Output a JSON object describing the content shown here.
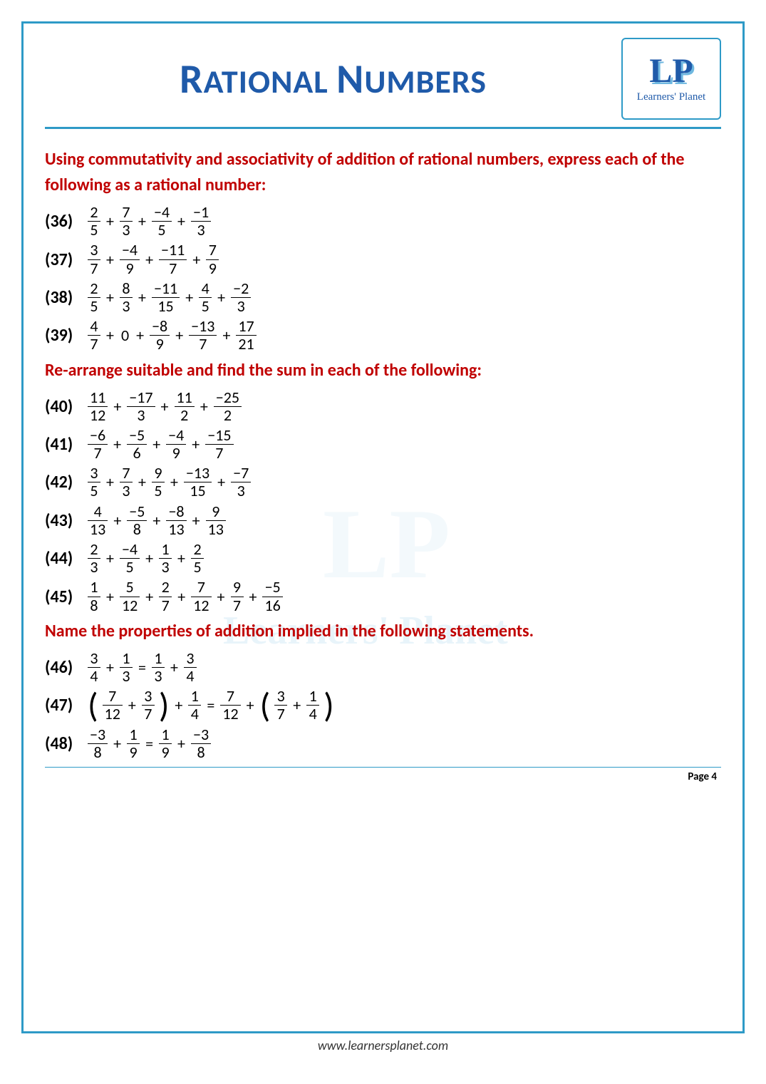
{
  "header": {
    "title_part1": "R",
    "title_part2": "ATIONAL ",
    "title_part3": "N",
    "title_part4": "UMBERS",
    "logo_initials": "LP",
    "logo_text": "Learners' Planet"
  },
  "watermark": {
    "logo": "LP",
    "text": "Learners' Planet"
  },
  "sections": [
    {
      "instruction": "Using commutativity and associativity of addition of rational numbers, express each of the following as a rational number:"
    },
    {
      "instruction": "Re-arrange suitable and find the sum in each of the following:"
    },
    {
      "instruction": "Name the properties of addition implied in the following statements."
    }
  ],
  "problems": {
    "p36": {
      "num": "(36)",
      "terms": [
        [
          "2",
          "5"
        ],
        [
          "7",
          "3"
        ],
        [
          "−4",
          "5"
        ],
        [
          "−1",
          "3"
        ]
      ],
      "ops": [
        "+",
        "+",
        "+"
      ]
    },
    "p37": {
      "num": "(37)",
      "terms": [
        [
          "3",
          "7"
        ],
        [
          "−4",
          "9"
        ],
        [
          "−11",
          "7"
        ],
        [
          "7",
          "9"
        ]
      ],
      "ops": [
        "+",
        "+",
        "+"
      ]
    },
    "p38": {
      "num": "(38)",
      "terms": [
        [
          "2",
          "5"
        ],
        [
          "8",
          "3"
        ],
        [
          "−11",
          "15"
        ],
        [
          "4",
          "5"
        ],
        [
          "−2",
          "3"
        ]
      ],
      "ops": [
        "+",
        "+",
        "+",
        "+"
      ]
    },
    "p39": {
      "num": "(39)",
      "terms": [
        [
          "4",
          "7"
        ],
        "0",
        [
          "−8",
          "9"
        ],
        [
          "−13",
          "7"
        ],
        [
          "17",
          "21"
        ]
      ],
      "ops": [
        "+",
        "+",
        "+",
        "+"
      ]
    },
    "p40": {
      "num": "(40)",
      "terms": [
        [
          "11",
          "12"
        ],
        [
          "−17",
          "3"
        ],
        [
          "11",
          "2"
        ],
        [
          "−25",
          "2"
        ]
      ],
      "ops": [
        "+",
        "+",
        "+"
      ]
    },
    "p41": {
      "num": "(41)",
      "terms": [
        [
          "−6",
          "7"
        ],
        [
          "−5",
          "6"
        ],
        [
          "−4",
          "9"
        ],
        [
          "−15",
          "7"
        ]
      ],
      "ops": [
        "+",
        "+",
        "+"
      ]
    },
    "p42": {
      "num": "(42)",
      "terms": [
        [
          "3",
          "5"
        ],
        [
          "7",
          "3"
        ],
        [
          "9",
          "5"
        ],
        [
          "−13",
          "15"
        ],
        [
          "−7",
          "3"
        ]
      ],
      "ops": [
        "+",
        "+",
        "+",
        "+"
      ]
    },
    "p43": {
      "num": "(43)",
      "terms": [
        [
          "4",
          "13"
        ],
        [
          "−5",
          "8"
        ],
        [
          "−8",
          "13"
        ],
        [
          "9",
          "13"
        ]
      ],
      "ops": [
        "+",
        "+",
        "+"
      ]
    },
    "p44": {
      "num": "(44)",
      "terms": [
        [
          "2",
          "3"
        ],
        [
          "−4",
          "5"
        ],
        [
          "1",
          "3"
        ],
        [
          "2",
          "5"
        ]
      ],
      "ops": [
        "+",
        "+",
        "+"
      ]
    },
    "p45": {
      "num": "(45)",
      "terms": [
        [
          "1",
          "8"
        ],
        [
          "5",
          "12"
        ],
        [
          "2",
          "7"
        ],
        [
          "7",
          "12"
        ],
        [
          "9",
          "7"
        ],
        [
          "−5",
          "16"
        ]
      ],
      "ops": [
        "+",
        "+",
        "+",
        "+",
        "+"
      ]
    },
    "p46": {
      "num": "(46)",
      "left": [
        [
          "3",
          "4"
        ],
        [
          "1",
          "3"
        ]
      ],
      "right": [
        [
          "1",
          "3"
        ],
        [
          "3",
          "4"
        ]
      ]
    },
    "p47": {
      "num": "(47)",
      "lg1": [
        [
          "7",
          "12"
        ],
        [
          "3",
          "7"
        ]
      ],
      "lt": [
        "1",
        "4"
      ],
      "rt": [
        "7",
        "12"
      ],
      "rg1": [
        [
          "3",
          "7"
        ],
        [
          "1",
          "4"
        ]
      ]
    },
    "p48": {
      "num": "(48)",
      "left": [
        [
          "−3",
          "8"
        ],
        [
          "1",
          "9"
        ]
      ],
      "right": [
        [
          "1",
          "9"
        ],
        [
          "−3",
          "8"
        ]
      ]
    }
  },
  "footer": {
    "page_label": "Page 4",
    "url": "www.learnersplanet.com"
  },
  "colors": {
    "border": "#2e9ac7",
    "title": "#1f5aa9",
    "instruction": "#c00000",
    "text": "#000000"
  }
}
